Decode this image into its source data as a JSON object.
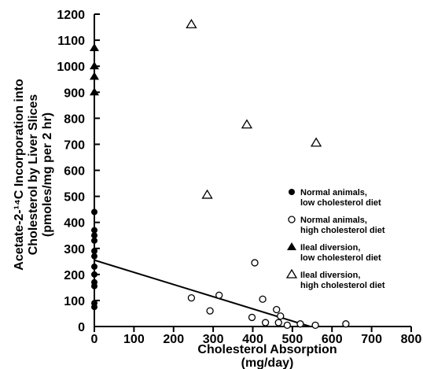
{
  "chart_data": {
    "type": "scatter",
    "title": "",
    "xlabel": "Cholesterol Absorption",
    "xlabel_unit": "(mg/day)",
    "ylabel_lines": [
      "Acetate-2-¹⁴C Incorporation into",
      "Cholesterol by Liver Slices",
      "(pmoles/mg per 2 hr)"
    ],
    "xlim": [
      0,
      800
    ],
    "ylim": [
      0,
      1200
    ],
    "x_ticks": [
      0,
      100,
      200,
      300,
      400,
      500,
      600,
      700,
      800
    ],
    "y_ticks": [
      0,
      100,
      200,
      300,
      400,
      500,
      600,
      700,
      800,
      900,
      1000,
      1100,
      1200
    ],
    "grid": false,
    "legend_position": "right",
    "series": [
      {
        "name": "Normal animals, low cholesterol diet",
        "legend_lines": [
          "Normal animals,",
          "low cholesterol diet"
        ],
        "marker": "filled-circle",
        "points": [
          [
            0,
            440
          ],
          [
            0,
            370
          ],
          [
            0,
            350
          ],
          [
            0,
            330
          ],
          [
            0,
            290
          ],
          [
            0,
            270
          ],
          [
            0,
            230
          ],
          [
            0,
            200
          ],
          [
            0,
            170
          ],
          [
            0,
            155
          ],
          [
            0,
            90
          ],
          [
            0,
            75
          ]
        ]
      },
      {
        "name": "Normal animals, high cholesterol diet",
        "legend_lines": [
          "Normal animals,",
          "high cholesterol diet"
        ],
        "marker": "open-circle",
        "points": [
          [
            245,
            110
          ],
          [
            292,
            60
          ],
          [
            315,
            120
          ],
          [
            398,
            35
          ],
          [
            405,
            245
          ],
          [
            425,
            105
          ],
          [
            432,
            15
          ],
          [
            460,
            65
          ],
          [
            465,
            15
          ],
          [
            470,
            40
          ],
          [
            487,
            5
          ],
          [
            520,
            10
          ],
          [
            558,
            5
          ],
          [
            635,
            10
          ]
        ]
      },
      {
        "name": "Ileal diversion, low cholesterol diet",
        "legend_lines": [
          "Ileal diversion,",
          "low cholesterol diet"
        ],
        "marker": "filled-triangle",
        "points": [
          [
            0,
            1070
          ],
          [
            0,
            1000
          ],
          [
            0,
            960
          ],
          [
            0,
            900
          ]
        ]
      },
      {
        "name": "Ileal diversion, high cholesterol diet",
        "legend_lines": [
          "Ileal diversion,",
          "high cholesterol diet"
        ],
        "marker": "open-triangle",
        "points": [
          [
            245,
            1160
          ],
          [
            285,
            505
          ],
          [
            385,
            775
          ],
          [
            560,
            705
          ]
        ]
      }
    ],
    "regression_line": {
      "x": [
        0,
        545
      ],
      "y": [
        255,
        0
      ]
    }
  }
}
